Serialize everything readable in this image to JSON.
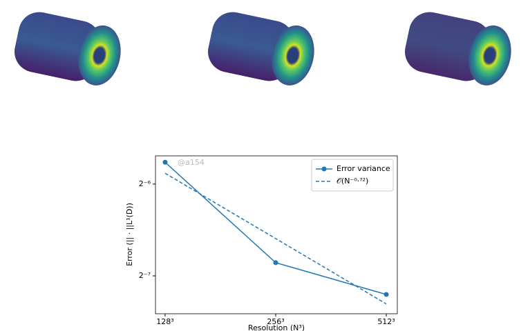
{
  "chart_data": {
    "type": "line",
    "x": [
      128,
      256,
      512
    ],
    "xlabel": "Resolution (N³)",
    "ylabel": "Error (|| · ||L¹(D))",
    "watermark": "@a154",
    "xscale": "log2",
    "yscale": "log2",
    "xlim": [
      120.5,
      548.7
    ],
    "ylim": [
      0.005868,
      0.01933
    ],
    "xticks": [
      {
        "value": 128,
        "label": "128³"
      },
      {
        "value": 256,
        "label": "256³"
      },
      {
        "value": 512,
        "label": "512³"
      }
    ],
    "yticks": [
      {
        "value": 0.015625,
        "label": "2⁻⁶"
      },
      {
        "value": 0.0078125,
        "label": "2⁻⁷"
      }
    ],
    "legend": "upper right",
    "series": [
      {
        "name": "Error variance",
        "color": "#1f77b4",
        "style": "solid",
        "marker": true,
        "values": [
          0.01842,
          0.00863,
          0.006789
        ]
      },
      {
        "name": "𝒪(N⁻⁰·⁷²)",
        "color": "#1f77b4",
        "style": "dashed",
        "marker": false,
        "values": [
          0.01695,
          0.01035,
          0.00632
        ]
      }
    ]
  }
}
